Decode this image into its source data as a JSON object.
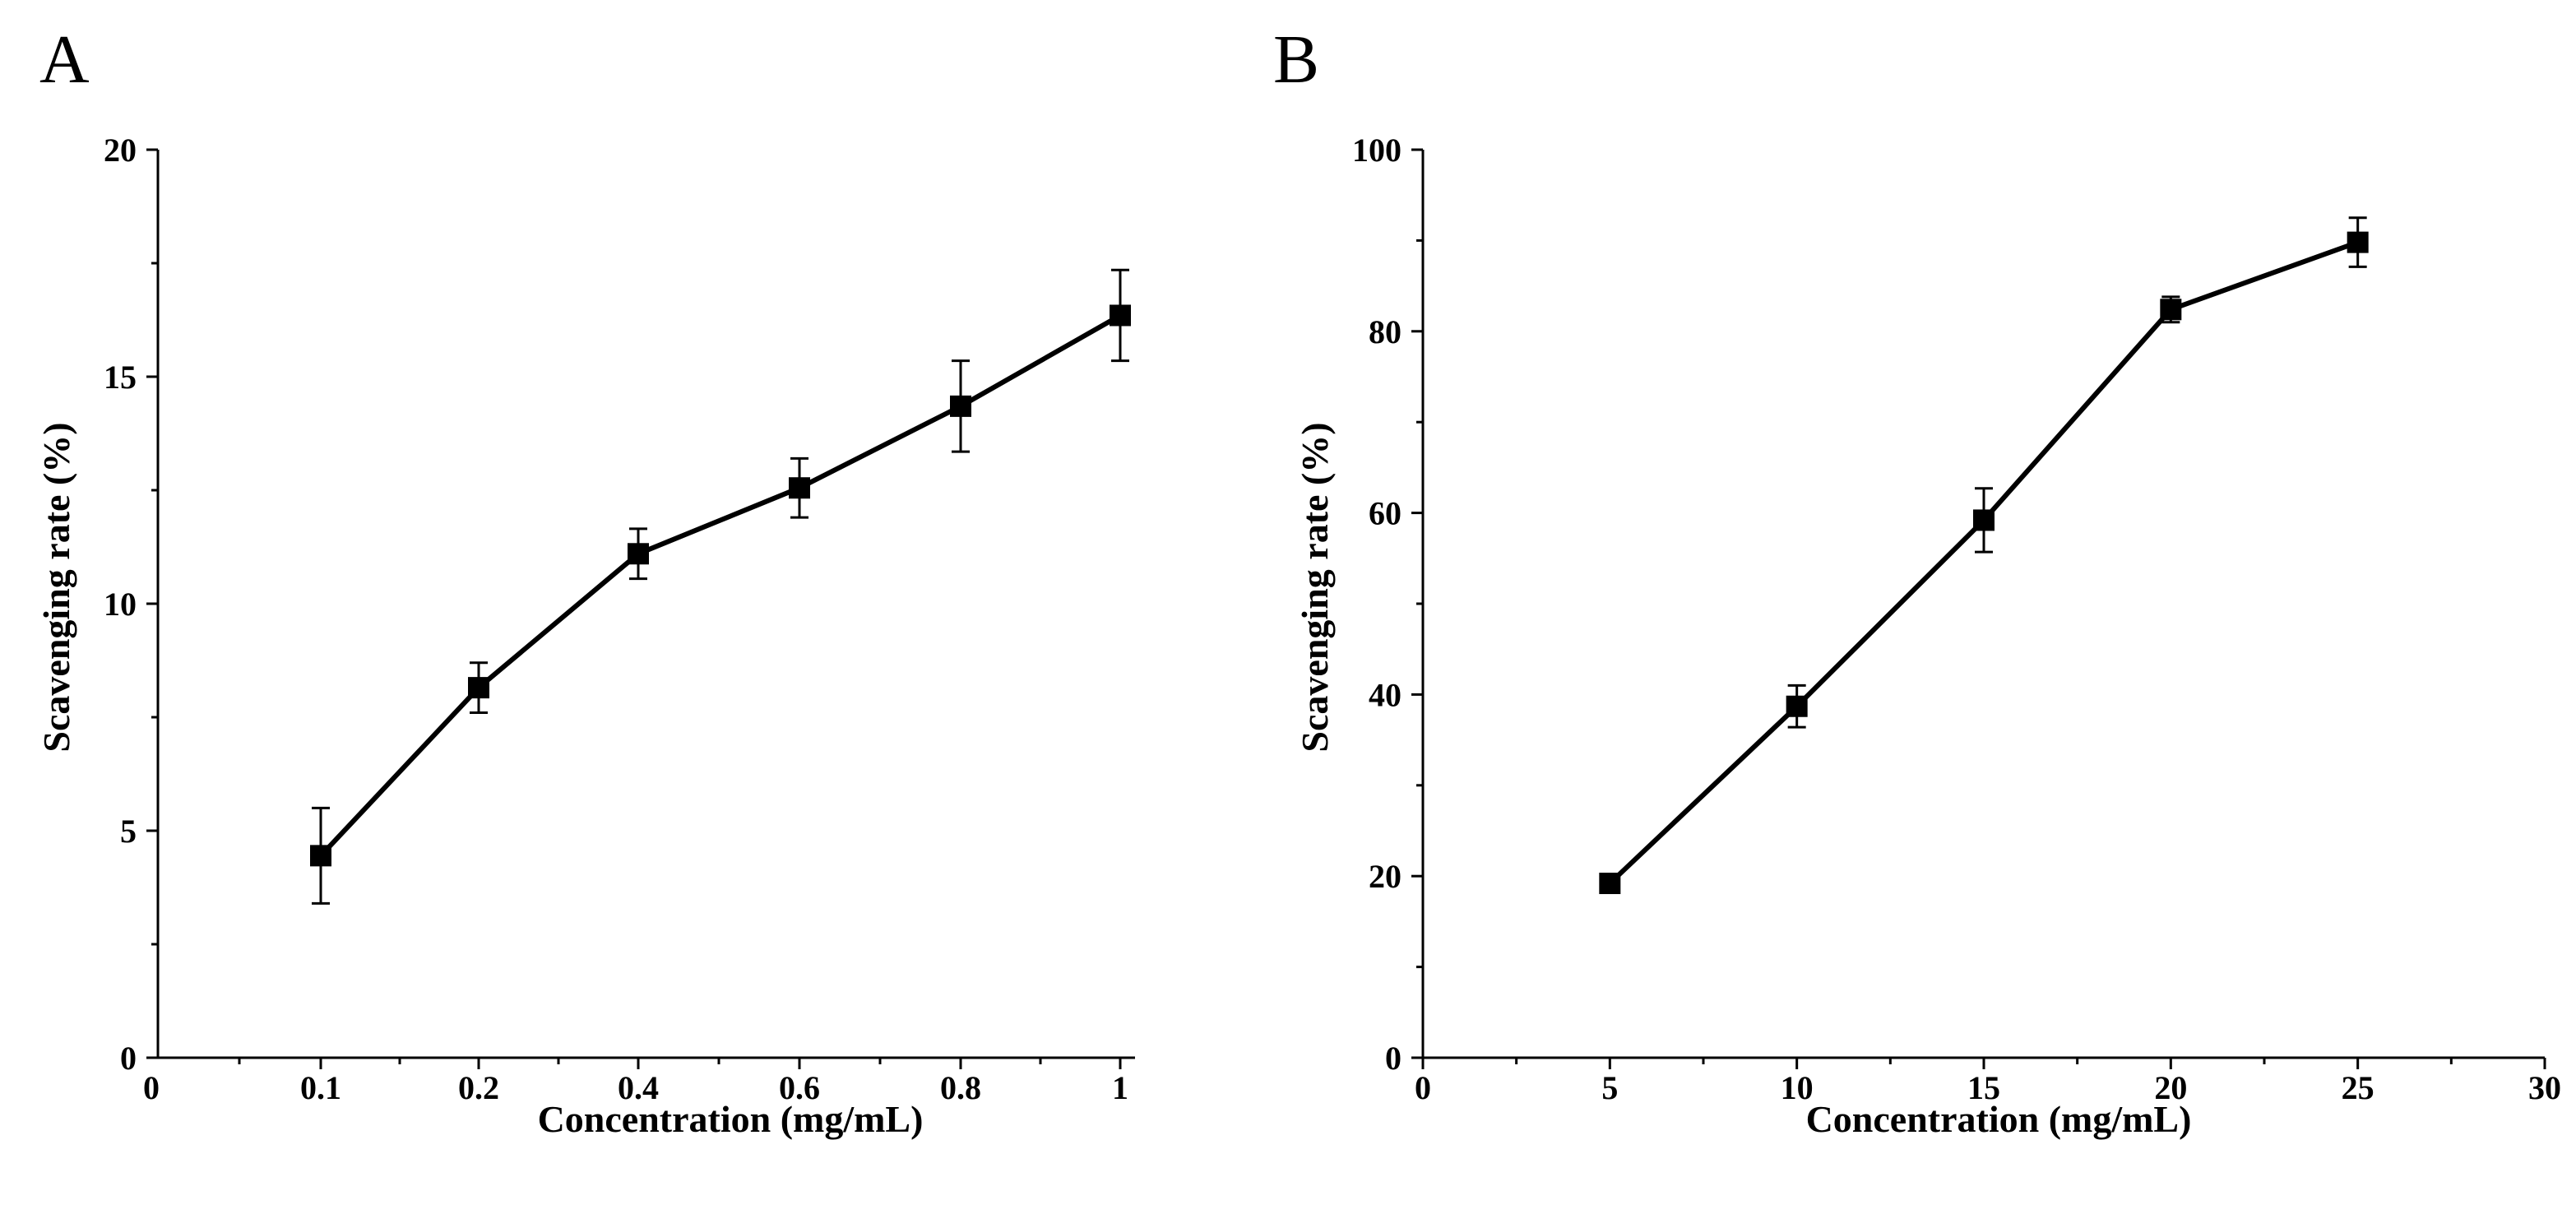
{
  "chart_data": [
    {
      "type": "line",
      "panel_label": "A",
      "xlabel": "Concentration (mg/mL)",
      "ylabel": "Scavenging rate (%)",
      "ylim": [
        0,
        20
      ],
      "yticks": [
        "0",
        "5",
        "10",
        "15",
        "20"
      ],
      "x_axis_kind": "categorical",
      "x_origin_label": "0",
      "categories": [
        "0.1",
        "0.2",
        "0.4",
        "0.6",
        "0.8",
        "1"
      ],
      "series": [
        {
          "name": "Scavenging rate",
          "values": [
            4.45,
            8.15,
            11.1,
            12.55,
            14.35,
            16.35
          ],
          "errors": [
            1.05,
            0.55,
            0.55,
            0.65,
            1.0,
            1.0
          ]
        }
      ]
    },
    {
      "type": "line",
      "panel_label": "B",
      "xlabel": "Concentration (mg/mL)",
      "ylabel": "Scavenging rate (%)",
      "ylim": [
        0,
        100
      ],
      "yticks": [
        "0",
        "20",
        "40",
        "60",
        "80",
        "100"
      ],
      "x_axis_kind": "numeric",
      "xlim": [
        0,
        30
      ],
      "xticks": [
        "0",
        "5",
        "10",
        "15",
        "20",
        "25",
        "30"
      ],
      "x": [
        5,
        10,
        15,
        20,
        25
      ],
      "series": [
        {
          "name": "Scavenging rate",
          "values": [
            19.2,
            38.7,
            59.2,
            82.4,
            89.8
          ],
          "errors": [
            0.8,
            2.3,
            3.5,
            1.4,
            2.7
          ]
        }
      ]
    }
  ]
}
